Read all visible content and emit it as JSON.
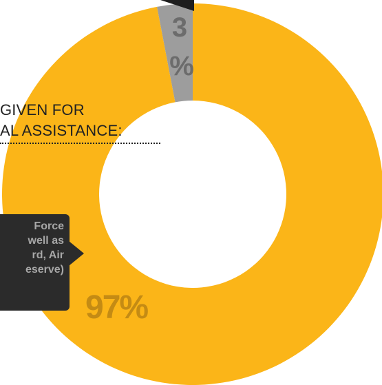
{
  "heading_lines": [
    "GIVEN FOR",
    "AL ASSISTANCE:"
  ],
  "callout_lines": [
    "Force",
    "well as",
    "rd, Air",
    "eserve)"
  ],
  "chart_data": {
    "type": "pie",
    "subtype": "donut",
    "slices": [
      {
        "label": "97%",
        "value": 97,
        "color": "#fbb518",
        "label_color": "#c48b14"
      },
      {
        "label": "3%",
        "value": 3,
        "color": "#9d9d9d",
        "label_color": "#6c6c6c"
      }
    ],
    "start_slice": "3%",
    "direction": "counter-clockwise from top"
  },
  "colors": {
    "callout_background": "#2b2b2b",
    "callout_text": "#a7a7a7",
    "text": "#222222"
  }
}
